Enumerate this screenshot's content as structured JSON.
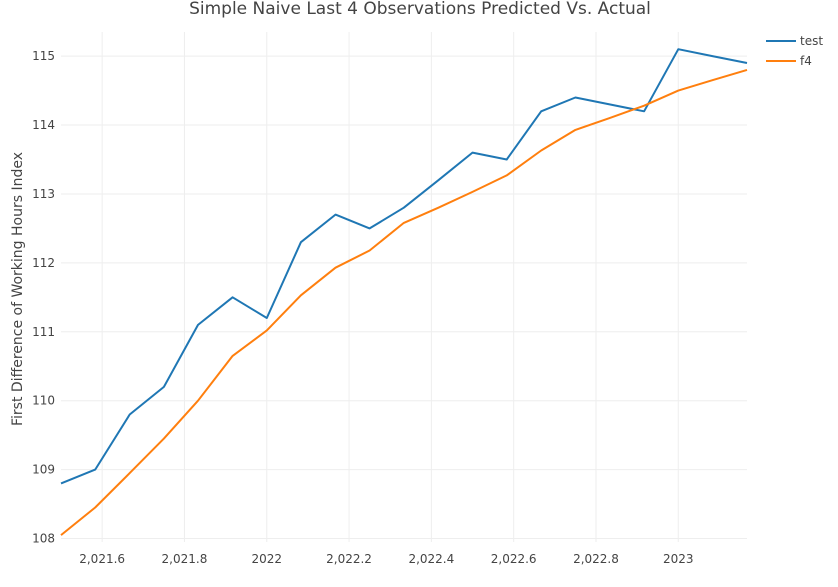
{
  "chart_data": {
    "type": "line",
    "title": "Simple Naive Last 4 Observations Predicted Vs. Actual",
    "ylabel": "First Difference of Working Hours Index",
    "xlabel": "",
    "xlim": [
      2021.5,
      2023.167
    ],
    "ylim": [
      107.95,
      115.35
    ],
    "grid": true,
    "legend": "top-right",
    "x_ticks": [
      {
        "value": 2021.6,
        "label": "2,021.6"
      },
      {
        "value": 2021.8,
        "label": "2,021.8"
      },
      {
        "value": 2022.0,
        "label": "2022"
      },
      {
        "value": 2022.2,
        "label": "2,022.2"
      },
      {
        "value": 2022.4,
        "label": "2,022.4"
      },
      {
        "value": 2022.6,
        "label": "2,022.6"
      },
      {
        "value": 2022.8,
        "label": "2,022.8"
      },
      {
        "value": 2023.0,
        "label": "2023"
      }
    ],
    "y_ticks": [
      {
        "value": 108,
        "label": "108"
      },
      {
        "value": 109,
        "label": "109"
      },
      {
        "value": 110,
        "label": "110"
      },
      {
        "value": 111,
        "label": "111"
      },
      {
        "value": 112,
        "label": "112"
      },
      {
        "value": 113,
        "label": "113"
      },
      {
        "value": 114,
        "label": "114"
      },
      {
        "value": 115,
        "label": "115"
      }
    ],
    "series": [
      {
        "name": "test",
        "color": "#1f77b4",
        "x": [
          2021.5,
          2021.583,
          2021.667,
          2021.75,
          2021.833,
          2021.917,
          2022.0,
          2022.083,
          2022.167,
          2022.25,
          2022.333,
          2022.417,
          2022.5,
          2022.583,
          2022.667,
          2022.75,
          2022.833,
          2022.917,
          2023.0,
          2023.083,
          2023.167
        ],
        "y": [
          108.8,
          109.0,
          109.8,
          110.2,
          111.1,
          111.5,
          111.2,
          112.3,
          112.7,
          112.5,
          112.8,
          113.2,
          113.6,
          113.5,
          114.2,
          114.4,
          114.3,
          114.2,
          115.1,
          115.0,
          114.9
        ]
      },
      {
        "name": "f4",
        "color": "#ff7f0e",
        "x": [
          2021.5,
          2021.583,
          2021.667,
          2021.75,
          2021.833,
          2021.917,
          2022.0,
          2022.083,
          2022.167,
          2022.25,
          2022.333,
          2022.417,
          2022.5,
          2022.583,
          2022.667,
          2022.75,
          2022.833,
          2022.917,
          2023.0,
          2023.083,
          2023.167
        ],
        "y": [
          108.05,
          108.45,
          108.95,
          109.45,
          110.0,
          110.65,
          111.02,
          111.53,
          111.93,
          112.18,
          112.58,
          112.8,
          113.03,
          113.27,
          113.63,
          113.93,
          114.1,
          114.28,
          114.5,
          114.65,
          114.8
        ]
      }
    ]
  }
}
